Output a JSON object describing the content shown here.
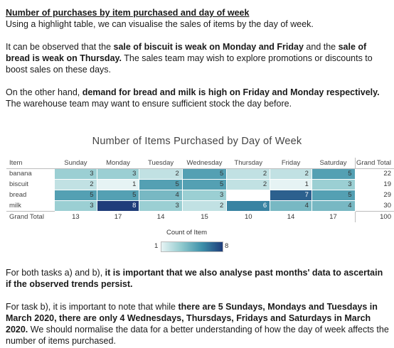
{
  "heading": "Number of purchases by item purchased and day of week",
  "intro": "Using a highlight table, we can visualise the sales of items by the day of week.",
  "para1": {
    "t1": "It can be observed that the ",
    "b1": "sale of biscuit is weak on Monday and Friday",
    "t2": " and the ",
    "b2": "sale of bread is weak on Thursday.",
    "t3": " The sales team may wish to explore promotions or discounts to boost sales on these days."
  },
  "para2": {
    "t1": "On the other hand, ",
    "b1": "demand for bread and milk is high on Friday and Monday respectively.",
    "t2": " The warehouse team may want to ensure sufficient stock the day before."
  },
  "chart_data": {
    "type": "table",
    "title": "Number of Items Purchased by Day of Week",
    "row_header": "Item",
    "columns": [
      "Sunday",
      "Monday",
      "Tuesday",
      "Wednesday",
      "Thursday",
      "Friday",
      "Saturday"
    ],
    "grand_total_label": "Grand Total",
    "rows": [
      {
        "item": "banana",
        "values": [
          3,
          3,
          2,
          5,
          2,
          2,
          5
        ],
        "total": 22
      },
      {
        "item": "biscuit",
        "values": [
          2,
          1,
          5,
          5,
          2,
          1,
          3
        ],
        "total": 19
      },
      {
        "item": "bread",
        "values": [
          5,
          5,
          4,
          3,
          null,
          7,
          5
        ],
        "total": 29
      },
      {
        "item": "milk",
        "values": [
          3,
          8,
          3,
          2,
          6,
          4,
          4
        ],
        "total": 30
      }
    ],
    "column_totals": [
      13,
      17,
      14,
      15,
      10,
      14,
      17
    ],
    "overall_total": 100,
    "legend": {
      "title": "Count of Item",
      "min": 1,
      "max": 8
    },
    "color_scale": [
      "#e6f3f4",
      "#8fc9cd",
      "#3d8fa9",
      "#1f3d7a"
    ]
  },
  "para3": {
    "t1": "For both tasks a) and b), ",
    "b1": "it is important that we also analyse past months' data to ascertain if the observed trends persist."
  },
  "para4": {
    "t1": "For task b), it is important to note that while ",
    "b1": "there are 5 Sundays, Mondays and Tuesdays in March 2020, there are only 4 Wednesdays, Thursdays, Fridays and Saturdays in March 2020.",
    "t2": " We should normalise the data for a better understanding of how the day of week affects the number of items purchased."
  }
}
